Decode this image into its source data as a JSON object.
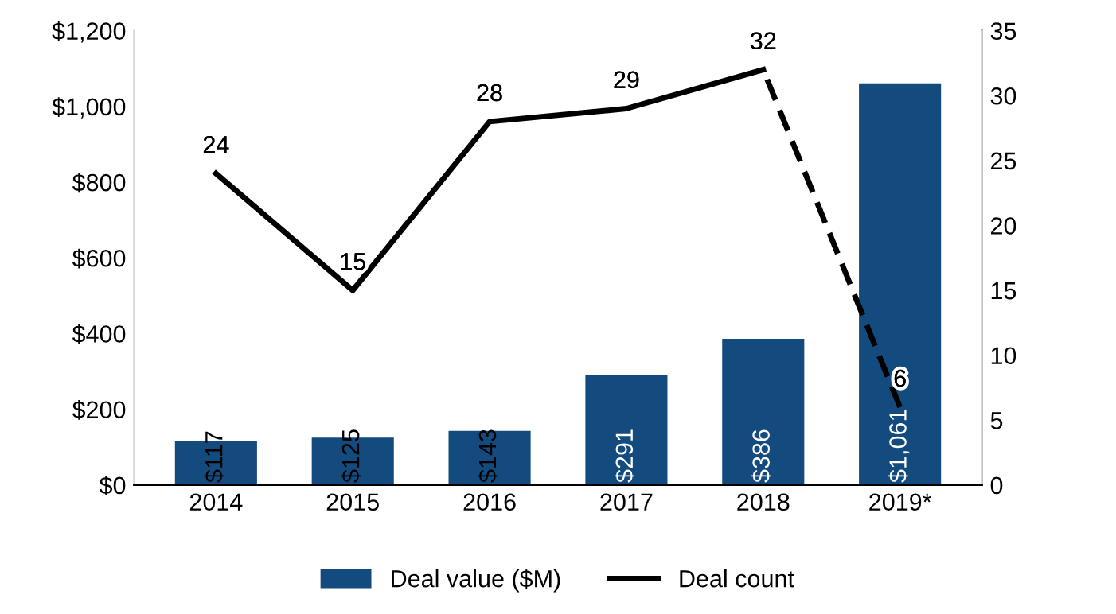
{
  "chart_data": {
    "type": "bar",
    "categories": [
      "2014",
      "2015",
      "2016",
      "2017",
      "2018",
      "2019*"
    ],
    "series": [
      {
        "name": "Deal value ($M)",
        "color": "#134b7f",
        "values": [
          117,
          125,
          143,
          291,
          386,
          1061
        ],
        "value_labels": [
          "$117",
          "$125",
          "$143",
          "$291",
          "$386",
          "$1,061"
        ]
      },
      {
        "name": "Deal count",
        "type": "line",
        "axis": "y2",
        "color": "#000000",
        "line_style": "solid",
        "values": [
          24,
          15,
          28,
          29,
          32,
          null
        ],
        "value_labels": [
          "24",
          "15",
          "28",
          "29",
          "32",
          null
        ]
      },
      {
        "type": "line",
        "axis": "y2",
        "color": "#000000",
        "line_style": "dashed",
        "values": [
          null,
          null,
          null,
          null,
          32,
          6
        ],
        "value_labels": [
          null,
          null,
          null,
          null,
          null,
          "6"
        ]
      }
    ],
    "ylim": [
      0,
      1200
    ],
    "yticks": [
      {
        "value": 0,
        "label": "$0"
      },
      {
        "value": 200,
        "label": "$200"
      },
      {
        "value": 400,
        "label": "$400"
      },
      {
        "value": 600,
        "label": "$600"
      },
      {
        "value": 800,
        "label": "$800"
      },
      {
        "value": 1000,
        "label": "$1,000"
      },
      {
        "value": 1200,
        "label": "$1,200"
      }
    ],
    "y2lim": [
      0,
      35
    ],
    "y2ticks": [
      0,
      5,
      10,
      15,
      20,
      25,
      30,
      35
    ],
    "grid": false,
    "legend": "bottom",
    "marker": "none"
  }
}
